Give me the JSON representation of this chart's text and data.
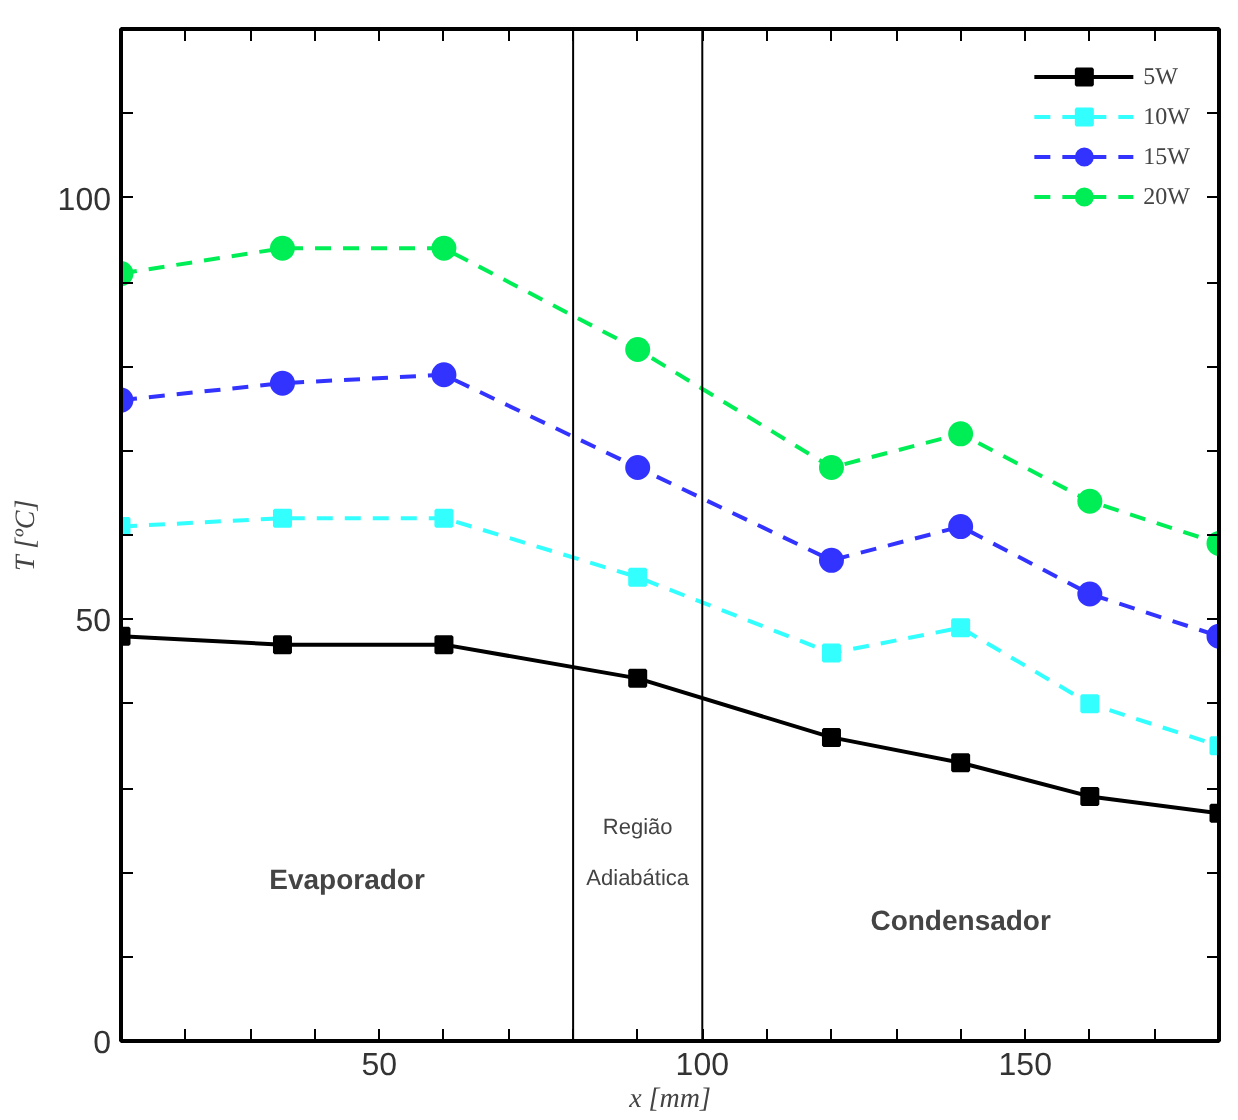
{
  "chart_data": {
    "type": "line",
    "xlabel": "x [mm]",
    "ylabel": "T [ºC]",
    "x": [
      10,
      35,
      60,
      90,
      120,
      140,
      160,
      180
    ],
    "series": [
      {
        "name": "5W",
        "color": "#000000",
        "marker": "square",
        "line_style": "solid",
        "values": [
          48,
          47,
          47,
          43,
          36,
          33,
          29,
          27
        ]
      },
      {
        "name": "10W",
        "color": "#33ffff",
        "marker": "square",
        "line_style": "dashed",
        "values": [
          61,
          62,
          62,
          55,
          46,
          49,
          40,
          35
        ]
      },
      {
        "name": "15W",
        "color": "#3333ff",
        "marker": "circle",
        "line_style": "dashed",
        "values": [
          76,
          78,
          79,
          68,
          57,
          61,
          53,
          48
        ]
      },
      {
        "name": "20W",
        "color": "#00ee55",
        "marker": "circle",
        "line_style": "dashed",
        "values": [
          91,
          94,
          94,
          82,
          68,
          72,
          64,
          59
        ]
      }
    ],
    "xlim": [
      10,
      180
    ],
    "ylim": [
      0,
      120
    ],
    "xticks": [
      {
        "value": 20,
        "label": null
      },
      {
        "value": 30,
        "label": null
      },
      {
        "value": 40,
        "label": null
      },
      50,
      {
        "value": 60,
        "label": null
      },
      {
        "value": 70,
        "label": null
      },
      {
        "value": 80,
        "label": null
      },
      {
        "value": 90,
        "label": null
      },
      100,
      {
        "value": 110,
        "label": null
      },
      {
        "value": 120,
        "label": null
      },
      {
        "value": 130,
        "label": null
      },
      {
        "value": 140,
        "label": null
      },
      150,
      {
        "value": 160,
        "label": null
      },
      {
        "value": 170,
        "label": null
      }
    ],
    "yticks": [
      0,
      {
        "value": 10,
        "label": null
      },
      {
        "value": 20,
        "label": null
      },
      {
        "value": 30,
        "label": null
      },
      {
        "value": 40,
        "label": null
      },
      50,
      {
        "value": 60,
        "label": null
      },
      {
        "value": 70,
        "label": null
      },
      {
        "value": 80,
        "label": null
      },
      {
        "value": 90,
        "label": null
      },
      100,
      {
        "value": 110,
        "label": null
      }
    ],
    "ref_lines": [
      {
        "axis": "x",
        "value": 80,
        "color": "#000000",
        "line_style": "solid"
      },
      {
        "axis": "x",
        "value": 100,
        "color": "#000000",
        "line_style": "solid"
      }
    ],
    "annotations": [
      "Evaporador",
      "Região Adiabática",
      "Condensador"
    ],
    "legend": "top right",
    "grid": false
  }
}
